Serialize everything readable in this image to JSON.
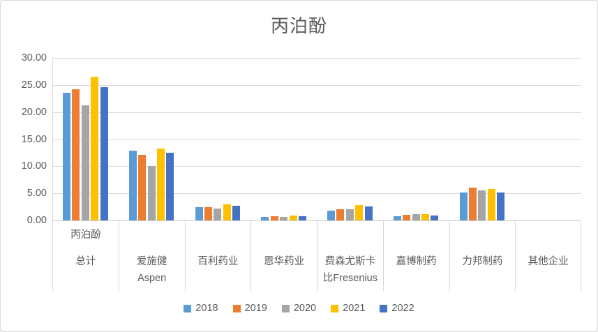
{
  "title": "丙泊酚",
  "chart_data": {
    "type": "bar",
    "title": "丙泊酚",
    "categories": [
      {
        "lines": [
          "丙泊酚",
          "总计"
        ],
        "spread": true
      },
      {
        "lines": [
          "爱施健",
          "Aspen"
        ]
      },
      {
        "lines": [
          "百利药业"
        ]
      },
      {
        "lines": [
          "恩华药业"
        ]
      },
      {
        "lines": [
          "费森尤斯卡",
          "比Fresenius"
        ]
      },
      {
        "lines": [
          "嘉博制药"
        ]
      },
      {
        "lines": [
          "力邦制药"
        ]
      },
      {
        "lines": [
          "其他企业"
        ]
      }
    ],
    "series": [
      {
        "name": "2018",
        "color": "#5B9BD5",
        "values": [
          23.6,
          12.9,
          2.4,
          0.6,
          1.8,
          0.8,
          5.2,
          0
        ]
      },
      {
        "name": "2019",
        "color": "#ED7D31",
        "values": [
          24.2,
          12.1,
          2.5,
          0.8,
          2.0,
          1.0,
          6.0,
          0
        ]
      },
      {
        "name": "2020",
        "color": "#A5A5A5",
        "values": [
          21.3,
          10.1,
          2.2,
          0.7,
          2.1,
          1.2,
          5.5,
          0
        ]
      },
      {
        "name": "2021",
        "color": "#FFC000",
        "values": [
          26.5,
          13.3,
          2.9,
          0.9,
          2.8,
          1.2,
          5.8,
          0
        ]
      },
      {
        "name": "2022",
        "color": "#4472C4",
        "values": [
          24.6,
          12.5,
          2.7,
          0.8,
          2.6,
          0.9,
          5.1,
          0
        ]
      }
    ],
    "ylim": [
      0,
      30
    ],
    "ytick_step": 5,
    "ytick_labels": [
      "0.00",
      "5.00",
      "10.00",
      "15.00",
      "20.00",
      "25.00",
      "30.00"
    ],
    "grid": true,
    "legend_position": "bottom",
    "xlabel": "",
    "ylabel": ""
  },
  "colors": {
    "text": "#595959",
    "grid": "#D9D9D9",
    "border": "#D9D9D9",
    "background": "#FFFFFF"
  }
}
